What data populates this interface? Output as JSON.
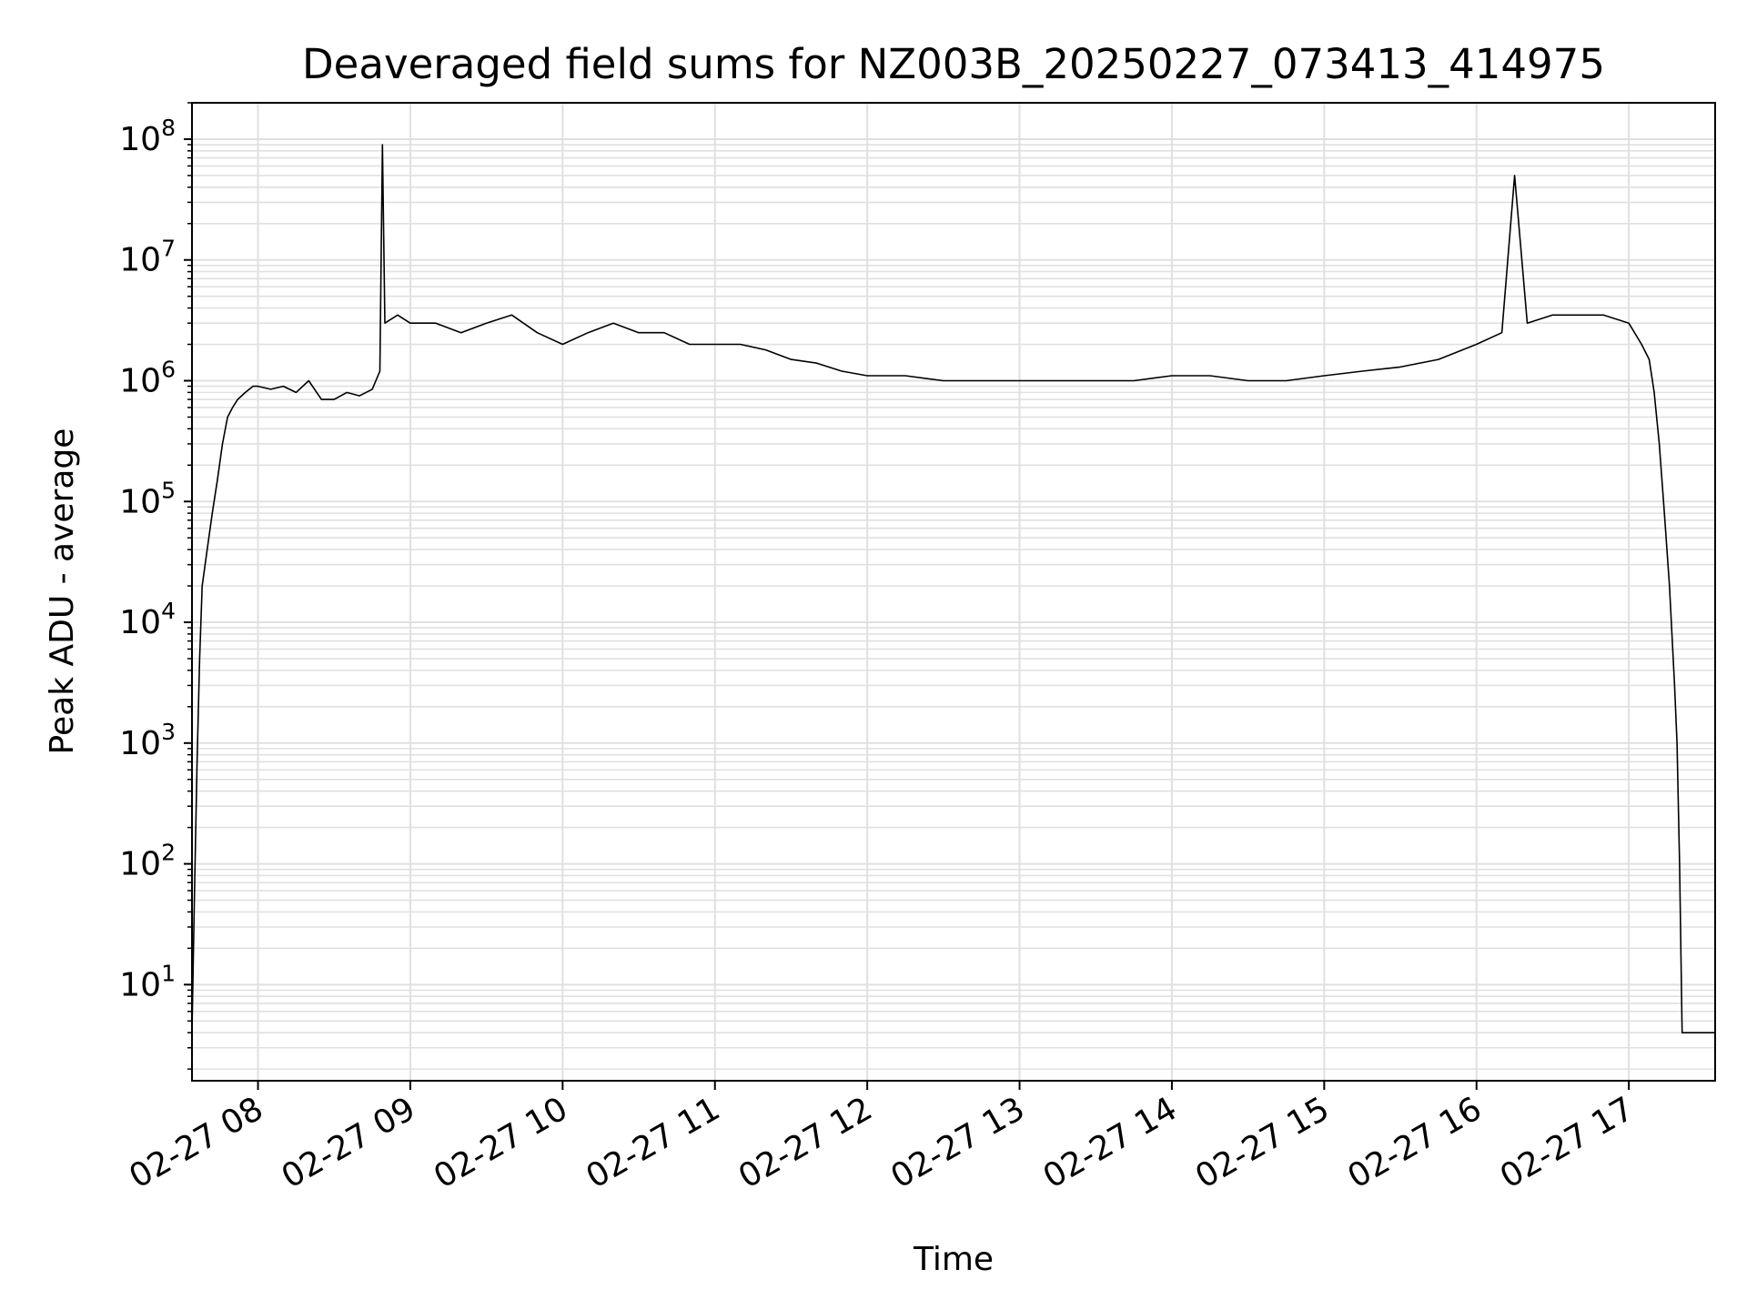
{
  "chart_data": {
    "type": "line",
    "title": "Deaveraged field sums for NZ003B_20250227_073413_414975",
    "xlabel": "Time",
    "ylabel": "Peak ADU - average",
    "yscale": "log",
    "ylim": [
      1.6,
      200000000
    ],
    "xlim": [
      "02-27 07:34",
      "02-27 17:34"
    ],
    "grid": true,
    "x_ticks": [
      "02-27 08",
      "02-27 09",
      "02-27 10",
      "02-27 11",
      "02-27 12",
      "02-27 13",
      "02-27 14",
      "02-27 15",
      "02-27 16",
      "02-27 17"
    ],
    "y_ticks": [
      {
        "base": "10",
        "exp": "1",
        "value": 10
      },
      {
        "base": "10",
        "exp": "2",
        "value": 100
      },
      {
        "base": "10",
        "exp": "3",
        "value": 1000
      },
      {
        "base": "10",
        "exp": "4",
        "value": 10000
      },
      {
        "base": "10",
        "exp": "5",
        "value": 100000
      },
      {
        "base": "10",
        "exp": "6",
        "value": 1000000
      },
      {
        "base": "10",
        "exp": "7",
        "value": 10000000
      },
      {
        "base": "10",
        "exp": "8",
        "value": 100000000
      }
    ],
    "line_color": "#000000",
    "grid_color": "#e0e0e0",
    "series": [
      {
        "x": [
          "07:34",
          "07:35",
          "07:36",
          "07:37",
          "07:38",
          "07:40",
          "07:42",
          "07:44",
          "07:46",
          "07:48",
          "07:50",
          "07:52",
          "07:55",
          "07:58",
          "08:00",
          "08:05",
          "08:10",
          "08:15",
          "08:20",
          "08:25",
          "08:30",
          "08:35",
          "08:40",
          "08:45",
          "08:48",
          "08:49",
          "08:50",
          "08:55",
          "09:00",
          "09:10",
          "09:20",
          "09:30",
          "09:40",
          "09:50",
          "10:00",
          "10:10",
          "10:20",
          "10:30",
          "10:40",
          "10:50",
          "11:00",
          "11:10",
          "11:20",
          "11:30",
          "11:40",
          "11:50",
          "12:00",
          "12:15",
          "12:30",
          "12:45",
          "13:00",
          "13:15",
          "13:30",
          "13:45",
          "14:00",
          "14:15",
          "14:30",
          "14:45",
          "15:00",
          "15:15",
          "15:30",
          "15:45",
          "16:00",
          "16:10",
          "16:15",
          "16:20",
          "16:30",
          "16:40",
          "16:50",
          "17:00",
          "17:05",
          "17:08",
          "17:10",
          "17:12",
          "17:14",
          "17:16",
          "17:18",
          "17:19",
          "17:20",
          "17:21",
          "17:22",
          "17:25",
          "17:30",
          "17:34"
        ],
        "y": [
          4,
          60,
          700,
          5000,
          20000,
          40000,
          80000,
          150000,
          300000,
          500000,
          600000,
          700000,
          800000,
          900000,
          900000,
          850000,
          900000,
          800000,
          1000000,
          700000,
          700000,
          800000,
          750000,
          850000,
          1200000,
          90000000,
          3000000,
          3500000,
          3000000,
          3000000,
          2500000,
          3000000,
          3500000,
          2500000,
          2000000,
          2500000,
          3000000,
          2500000,
          2500000,
          2000000,
          2000000,
          2000000,
          1800000,
          1500000,
          1400000,
          1200000,
          1100000,
          1100000,
          1000000,
          1000000,
          1000000,
          1000000,
          1000000,
          1000000,
          1100000,
          1100000,
          1000000,
          1000000,
          1100000,
          1200000,
          1300000,
          1500000,
          2000000,
          2500000,
          50000000,
          3000000,
          3500000,
          3500000,
          3500000,
          3000000,
          2000000,
          1500000,
          800000,
          300000,
          80000,
          20000,
          3000,
          1000,
          100,
          4,
          4,
          4,
          4,
          4
        ]
      }
    ]
  }
}
